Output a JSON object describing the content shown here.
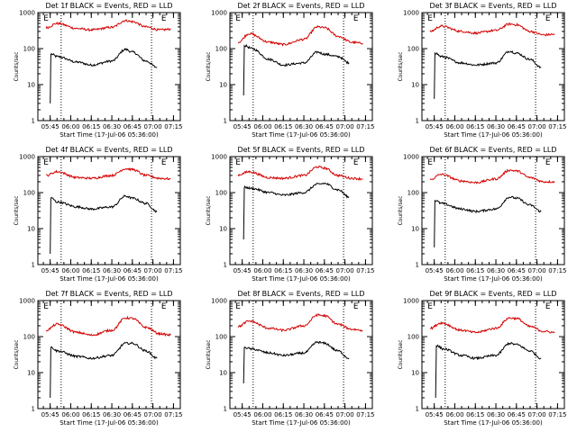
{
  "chart_data": [
    {
      "type": "line",
      "title": "Det 1f BLACK = Events, RED = LLD",
      "xlabel": "Start Time (17-Jul-06 05:36:00)",
      "ylabel": "Counts/sec",
      "ylim": [
        1,
        1000
      ],
      "yscale": "log",
      "x_ticks": [
        "05:45",
        "06:00",
        "06:15",
        "06:30",
        "06:45",
        "07:00",
        "07:15"
      ],
      "y_ticks": [
        "1",
        "10",
        "100",
        "1000"
      ],
      "markers": [
        {
          "label": "E",
          "x": "05:42"
        },
        {
          "label": "E",
          "x": "07:08"
        }
      ],
      "vertical_lines": [
        "05:53",
        "06:59"
      ],
      "color_events": "#000000",
      "color_lld": "#d40000",
      "series": [
        {
          "name": "Events",
          "x": [
            "05:45",
            "05:46",
            "05:50",
            "06:05",
            "06:15",
            "06:30",
            "06:40",
            "06:45",
            "06:55",
            "07:03"
          ],
          "values": [
            3,
            70,
            60,
            42,
            35,
            45,
            95,
            80,
            45,
            30
          ]
        },
        {
          "name": "LLD",
          "x": [
            "05:42",
            "05:50",
            "06:05",
            "06:15",
            "06:30",
            "06:40",
            "06:45",
            "06:55",
            "07:05",
            "07:13"
          ],
          "values": [
            380,
            500,
            360,
            330,
            390,
            600,
            560,
            400,
            330,
            345
          ]
        }
      ]
    },
    {
      "type": "line",
      "title": "Det 2f BLACK = Events, RED = LLD",
      "xlabel": "Start Time (17-Jul-06 05:36:00)",
      "ylabel": "Counts/sec",
      "ylim": [
        1,
        1000
      ],
      "yscale": "log",
      "x_ticks": [
        "05:45",
        "06:00",
        "06:15",
        "06:30",
        "06:45",
        "07:00",
        "07:15"
      ],
      "y_ticks": [
        "1",
        "10",
        "100",
        "1000"
      ],
      "markers": [
        {
          "label": "E",
          "x": "05:42"
        },
        {
          "label": "E",
          "x": "07:08"
        }
      ],
      "vertical_lines": [
        "05:53",
        "06:59"
      ],
      "color_events": "#000000",
      "color_lld": "#d40000",
      "series": [
        {
          "name": "Events",
          "x": [
            "05:46",
            "05:47",
            "05:52",
            "06:05",
            "06:15",
            "06:30",
            "06:40",
            "06:45",
            "06:55",
            "07:03"
          ],
          "values": [
            5,
            120,
            100,
            50,
            35,
            40,
            80,
            70,
            60,
            40
          ]
        },
        {
          "name": "LLD",
          "x": [
            "05:42",
            "05:50",
            "06:05",
            "06:15",
            "06:30",
            "06:40",
            "06:45",
            "06:55",
            "07:05",
            "07:13"
          ],
          "values": [
            150,
            260,
            150,
            130,
            180,
            400,
            380,
            220,
            150,
            140
          ]
        }
      ]
    },
    {
      "type": "line",
      "title": "Det 3f BLACK = Events, RED = LLD",
      "xlabel": "Start Time (17-Jul-06 05:36:00)",
      "ylabel": "Counts/sec",
      "ylim": [
        1,
        1000
      ],
      "yscale": "log",
      "x_ticks": [
        "05:45",
        "06:00",
        "06:15",
        "06:30",
        "06:45",
        "07:00",
        "07:15"
      ],
      "y_ticks": [
        "1",
        "10",
        "100",
        "1000"
      ],
      "markers": [
        {
          "label": "E",
          "x": "05:42"
        },
        {
          "label": "E",
          "x": "07:08"
        }
      ],
      "vertical_lines": [
        "05:53",
        "06:59"
      ],
      "color_events": "#000000",
      "color_lld": "#d40000",
      "series": [
        {
          "name": "Events",
          "x": [
            "05:45",
            "05:46",
            "05:50",
            "06:05",
            "06:15",
            "06:30",
            "06:40",
            "06:45",
            "06:55",
            "07:03"
          ],
          "values": [
            4,
            75,
            60,
            40,
            35,
            40,
            85,
            75,
            50,
            30
          ]
        },
        {
          "name": "LLD",
          "x": [
            "05:42",
            "05:50",
            "06:05",
            "06:15",
            "06:30",
            "06:40",
            "06:45",
            "06:55",
            "07:05",
            "07:13"
          ],
          "values": [
            300,
            420,
            300,
            270,
            320,
            480,
            460,
            300,
            240,
            250
          ]
        }
      ]
    },
    {
      "type": "line",
      "title": "Det 4f BLACK = Events, RED = LLD",
      "xlabel": "Start Time (17-Jul-06 05:36:00)",
      "ylabel": "Counts/sec",
      "ylim": [
        1,
        1000
      ],
      "yscale": "log",
      "x_ticks": [
        "05:45",
        "06:00",
        "06:15",
        "06:30",
        "06:45",
        "07:00",
        "07:15"
      ],
      "y_ticks": [
        "1",
        "10",
        "100",
        "1000"
      ],
      "markers": [
        {
          "label": "E",
          "x": "05:42"
        },
        {
          "label": "E",
          "x": "07:08"
        }
      ],
      "vertical_lines": [
        "05:53",
        "06:59"
      ],
      "color_events": "#000000",
      "color_lld": "#d40000",
      "series": [
        {
          "name": "Events",
          "x": [
            "05:45",
            "05:46",
            "05:50",
            "06:05",
            "06:15",
            "06:30",
            "06:40",
            "06:45",
            "06:55",
            "07:03"
          ],
          "values": [
            2,
            70,
            55,
            40,
            35,
            40,
            80,
            70,
            50,
            30
          ]
        },
        {
          "name": "LLD",
          "x": [
            "05:42",
            "05:50",
            "06:05",
            "06:15",
            "06:30",
            "06:40",
            "06:45",
            "06:55",
            "07:05",
            "07:13"
          ],
          "values": [
            300,
            380,
            260,
            250,
            300,
            460,
            440,
            300,
            250,
            240
          ]
        }
      ]
    },
    {
      "type": "line",
      "title": "Det 5f BLACK = Events, RED = LLD",
      "xlabel": "Start Time (17-Jul-06 05:36:00)",
      "ylabel": "Counts/sec",
      "ylim": [
        1,
        1000
      ],
      "yscale": "log",
      "x_ticks": [
        "05:45",
        "06:00",
        "06:15",
        "06:30",
        "06:45",
        "07:00",
        "07:15"
      ],
      "y_ticks": [
        "1",
        "10",
        "100",
        "1000"
      ],
      "markers": [
        {
          "label": "E",
          "x": "05:42"
        },
        {
          "label": "E",
          "x": "07:08"
        }
      ],
      "vertical_lines": [
        "05:53",
        "06:59"
      ],
      "color_events": "#000000",
      "color_lld": "#d40000",
      "series": [
        {
          "name": "Events",
          "x": [
            "05:46",
            "05:47",
            "05:52",
            "06:05",
            "06:15",
            "06:30",
            "06:40",
            "06:45",
            "06:55",
            "07:03"
          ],
          "values": [
            5,
            140,
            130,
            100,
            85,
            100,
            170,
            180,
            120,
            75
          ]
        },
        {
          "name": "LLD",
          "x": [
            "05:42",
            "05:50",
            "06:05",
            "06:15",
            "06:30",
            "06:40",
            "06:45",
            "06:55",
            "07:05",
            "07:13"
          ],
          "values": [
            310,
            380,
            260,
            250,
            300,
            520,
            480,
            300,
            250,
            240
          ]
        }
      ]
    },
    {
      "type": "line",
      "title": "Det 6f BLACK = Events, RED = LLD",
      "xlabel": "Start Time (17-Jul-06 05:36:00)",
      "ylabel": "Counts/sec",
      "ylim": [
        1,
        1000
      ],
      "yscale": "log",
      "x_ticks": [
        "05:45",
        "06:00",
        "06:15",
        "06:30",
        "06:45",
        "07:00",
        "07:15"
      ],
      "y_ticks": [
        "1",
        "10",
        "100",
        "1000"
      ],
      "markers": [
        {
          "label": "E",
          "x": "05:42"
        },
        {
          "label": "E",
          "x": "07:08"
        }
      ],
      "vertical_lines": [
        "05:53",
        "06:59"
      ],
      "color_events": "#000000",
      "color_lld": "#d40000",
      "series": [
        {
          "name": "Events",
          "x": [
            "05:45",
            "05:46",
            "05:50",
            "06:05",
            "06:15",
            "06:30",
            "06:40",
            "06:45",
            "06:55",
            "07:03"
          ],
          "values": [
            3,
            60,
            50,
            35,
            30,
            35,
            75,
            70,
            45,
            30
          ]
        },
        {
          "name": "LLD",
          "x": [
            "05:42",
            "05:50",
            "06:05",
            "06:15",
            "06:30",
            "06:40",
            "06:45",
            "06:55",
            "07:05",
            "07:13"
          ],
          "values": [
            230,
            320,
            210,
            190,
            240,
            420,
            400,
            260,
            200,
            200
          ]
        }
      ]
    },
    {
      "type": "line",
      "title": "Det 7f BLACK = Events, RED = LLD",
      "xlabel": "Start Time (17-Jul-06 05:36:00)",
      "ylabel": "Counts/sec",
      "ylim": [
        1,
        1000
      ],
      "yscale": "log",
      "x_ticks": [
        "05:45",
        "06:00",
        "06:15",
        "06:30",
        "06:45",
        "07:00",
        "07:15"
      ],
      "y_ticks": [
        "1",
        "10",
        "100",
        "1000"
      ],
      "markers": [
        {
          "label": "E",
          "x": "05:42"
        },
        {
          "label": "E",
          "x": "07:08"
        }
      ],
      "vertical_lines": [
        "05:53",
        "06:59"
      ],
      "color_events": "#000000",
      "color_lld": "#d40000",
      "series": [
        {
          "name": "Events",
          "x": [
            "05:45",
            "05:46",
            "05:50",
            "06:05",
            "06:15",
            "06:30",
            "06:40",
            "06:45",
            "06:55",
            "07:03"
          ],
          "values": [
            2,
            50,
            40,
            28,
            25,
            30,
            65,
            65,
            40,
            25
          ]
        },
        {
          "name": "LLD",
          "x": [
            "05:42",
            "05:50",
            "06:05",
            "06:15",
            "06:30",
            "06:40",
            "06:45",
            "06:55",
            "07:05",
            "07:13"
          ],
          "values": [
            150,
            220,
            130,
            110,
            150,
            330,
            320,
            180,
            120,
            110
          ]
        }
      ]
    },
    {
      "type": "line",
      "title": "Det 8f BLACK = Events, RED = LLD",
      "xlabel": "Start Time (17-Jul-06 05:36:00)",
      "ylabel": "Counts/sec",
      "ylim": [
        1,
        1000
      ],
      "yscale": "log",
      "x_ticks": [
        "05:45",
        "06:00",
        "06:15",
        "06:30",
        "06:45",
        "07:00",
        "07:15"
      ],
      "y_ticks": [
        "1",
        "10",
        "100",
        "1000"
      ],
      "markers": [
        {
          "label": "E",
          "x": "05:42"
        },
        {
          "label": "E",
          "x": "07:08"
        }
      ],
      "vertical_lines": [
        "05:53",
        "06:59"
      ],
      "color_events": "#000000",
      "color_lld": "#d40000",
      "series": [
        {
          "name": "Events",
          "x": [
            "05:46",
            "05:47",
            "05:52",
            "06:05",
            "06:15",
            "06:30",
            "06:40",
            "06:45",
            "06:55",
            "07:03"
          ],
          "values": [
            5,
            50,
            45,
            35,
            30,
            35,
            70,
            65,
            40,
            25
          ]
        },
        {
          "name": "LLD",
          "x": [
            "05:42",
            "05:50",
            "06:05",
            "06:15",
            "06:30",
            "06:40",
            "06:45",
            "06:55",
            "07:05",
            "07:13"
          ],
          "values": [
            190,
            270,
            170,
            150,
            200,
            400,
            380,
            220,
            160,
            150
          ]
        }
      ]
    },
    {
      "type": "line",
      "title": "Det 9f BLACK = Events, RED = LLD",
      "xlabel": "Start Time (17-Jul-06 05:36:00)",
      "ylabel": "Counts/sec",
      "ylim": [
        1,
        1000
      ],
      "yscale": "log",
      "x_ticks": [
        "05:45",
        "06:00",
        "06:15",
        "06:30",
        "06:45",
        "07:00",
        "07:15"
      ],
      "y_ticks": [
        "1",
        "10",
        "100",
        "1000"
      ],
      "markers": [
        {
          "label": "E",
          "x": "05:42"
        },
        {
          "label": "E",
          "x": "07:08"
        }
      ],
      "vertical_lines": [
        "05:53",
        "06:59"
      ],
      "color_events": "#000000",
      "color_lld": "#d40000",
      "series": [
        {
          "name": "Events",
          "x": [
            "05:46",
            "05:47",
            "05:52",
            "06:05",
            "06:15",
            "06:30",
            "06:40",
            "06:45",
            "06:55",
            "07:03"
          ],
          "values": [
            2,
            55,
            45,
            30,
            25,
            30,
            65,
            60,
            40,
            25
          ]
        },
        {
          "name": "LLD",
          "x": [
            "05:42",
            "05:50",
            "06:05",
            "06:15",
            "06:30",
            "06:40",
            "06:45",
            "06:55",
            "07:05",
            "07:13"
          ],
          "values": [
            170,
            240,
            150,
            130,
            170,
            330,
            320,
            190,
            140,
            130
          ]
        }
      ]
    }
  ]
}
